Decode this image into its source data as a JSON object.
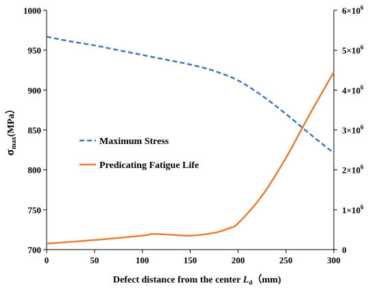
{
  "chart_data": {
    "type": "line",
    "title": "",
    "xlabel": "Defect distance from the center",
    "xlabel_symbol": "L",
    "xlabel_sub": "d",
    "xlabel_unit": "（mm)",
    "ylabel_left_symbol": "σ",
    "ylabel_left_sub": "max",
    "ylabel_left_unit": "(MPa）",
    "xlim": [
      0,
      300
    ],
    "ylim_left": [
      700,
      1000
    ],
    "ylim_right": [
      0,
      6000000
    ],
    "x_ticks": [
      "0",
      "50",
      "100",
      "150",
      "200",
      "250",
      "300"
    ],
    "y_left_ticks": [
      "700",
      "750",
      "800",
      "850",
      "900",
      "950",
      "1000"
    ],
    "y_right_ticks": [
      {
        "base": "0",
        "exp": ""
      },
      {
        "base": "1×10",
        "exp": "6"
      },
      {
        "base": "2×10",
        "exp": "6"
      },
      {
        "base": "3×10",
        "exp": "6"
      },
      {
        "base": "4×10",
        "exp": "6"
      },
      {
        "base": "5×10",
        "exp": "6"
      },
      {
        "base": "6×10",
        "exp": "6"
      }
    ],
    "grid": false,
    "legend_position": "center-left",
    "series": [
      {
        "name": "Maximum Stress",
        "axis": "left",
        "color": "#4472C4",
        "dash": "dashed",
        "x": [
          0,
          25,
          50,
          75,
          100,
          125,
          150,
          175,
          200,
          225,
          250,
          275,
          300
        ],
        "y": [
          967,
          961,
          956,
          950,
          944,
          938,
          932,
          924,
          912,
          893,
          870,
          845,
          821
        ]
      },
      {
        "name": "Predicating Fatigue Life",
        "axis": "right",
        "color": "#ED7D31",
        "dash": "solid",
        "x": [
          0,
          50,
          100,
          110,
          125,
          150,
          175,
          190,
          200,
          225,
          250,
          275,
          300
        ],
        "y": [
          150000,
          240000,
          350000,
          390000,
          380000,
          350000,
          420000,
          530000,
          660000,
          1350000,
          2300000,
          3400000,
          4450000
        ]
      }
    ]
  }
}
